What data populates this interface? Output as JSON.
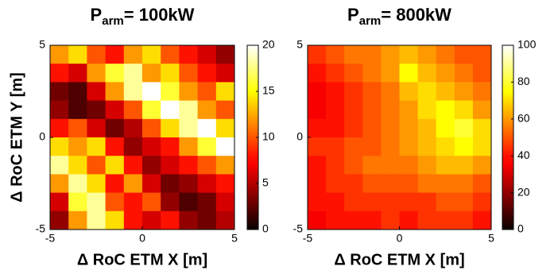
{
  "chart_data": [
    {
      "type": "heatmap",
      "title": {
        "main": "P",
        "subscript": "arm",
        "rest": "= 100kW"
      },
      "x_label": "Δ RoC ETM X [m]",
      "y_label": "Δ RoC ETM Y [m]",
      "xlim": [
        -5,
        5
      ],
      "ylim": [
        -5,
        5
      ],
      "xticks": [
        -5,
        0,
        5
      ],
      "yticks": [
        -5,
        0,
        5
      ],
      "colormap": "hot",
      "clim": [
        0,
        20
      ],
      "colorbar_ticks": [
        0,
        5,
        10,
        15,
        20
      ],
      "values": [
        [
          12,
          14,
          10,
          8,
          12,
          14,
          10,
          8,
          6,
          4
        ],
        [
          8,
          6,
          12,
          16,
          18,
          12,
          14,
          10,
          8,
          6
        ],
        [
          3,
          2,
          6,
          12,
          18,
          20,
          16,
          12,
          10,
          14
        ],
        [
          4,
          2,
          3,
          6,
          10,
          16,
          20,
          18,
          12,
          10
        ],
        [
          8,
          10,
          6,
          3,
          5,
          10,
          14,
          18,
          20,
          14
        ],
        [
          14,
          12,
          14,
          8,
          4,
          6,
          8,
          12,
          16,
          20
        ],
        [
          18,
          14,
          10,
          14,
          8,
          4,
          6,
          8,
          10,
          12
        ],
        [
          12,
          18,
          14,
          8,
          12,
          6,
          3,
          4,
          6,
          8
        ],
        [
          6,
          16,
          18,
          10,
          8,
          10,
          4,
          2,
          3,
          6
        ],
        [
          4,
          12,
          18,
          14,
          8,
          6,
          8,
          4,
          3,
          5
        ]
      ]
    },
    {
      "type": "heatmap",
      "title": {
        "main": "P",
        "subscript": "arm",
        "rest": "= 800kW"
      },
      "x_label": "Δ RoC ETM X [m]",
      "xlim": [
        -5,
        5
      ],
      "ylim": [
        -5,
        5
      ],
      "xticks": [
        -5,
        0,
        5
      ],
      "yticks": [
        -5,
        0,
        5
      ],
      "colormap": "hot",
      "clim": [
        0,
        100
      ],
      "colorbar_ticks": [
        0,
        20,
        40,
        60,
        80,
        100
      ],
      "values": [
        [
          45,
          50,
          55,
          55,
          60,
          65,
          60,
          55,
          50,
          50
        ],
        [
          40,
          45,
          50,
          55,
          60,
          75,
          65,
          60,
          55,
          50
        ],
        [
          35,
          40,
          45,
          50,
          55,
          65,
          70,
          65,
          60,
          55
        ],
        [
          35,
          40,
          45,
          50,
          55,
          60,
          70,
          75,
          70,
          60
        ],
        [
          40,
          40,
          45,
          50,
          55,
          60,
          65,
          75,
          80,
          70
        ],
        [
          45,
          45,
          50,
          50,
          55,
          60,
          65,
          70,
          75,
          70
        ],
        [
          40,
          45,
          50,
          55,
          55,
          55,
          60,
          65,
          65,
          60
        ],
        [
          40,
          45,
          45,
          50,
          50,
          50,
          55,
          55,
          55,
          50
        ],
        [
          40,
          40,
          45,
          45,
          45,
          45,
          45,
          50,
          50,
          45
        ],
        [
          35,
          40,
          40,
          40,
          45,
          40,
          45,
          45,
          45,
          40
        ]
      ]
    }
  ]
}
